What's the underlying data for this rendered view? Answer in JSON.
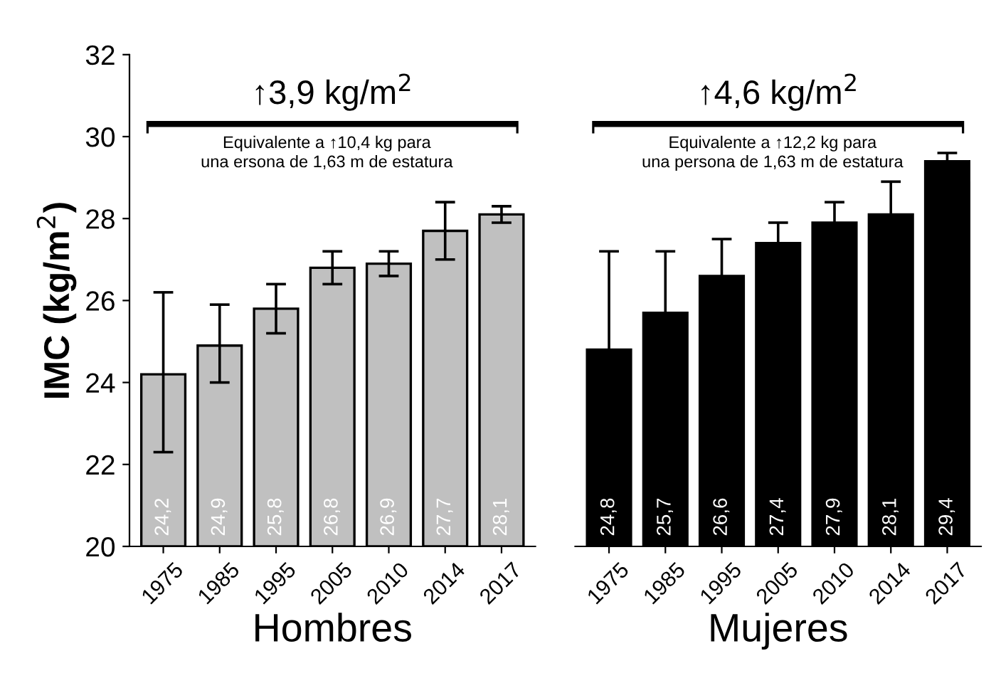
{
  "chart_data": [
    {
      "type": "bar",
      "title": "↑3,9 kg/m$^{2}$",
      "subtitle": "Equivalente a ↑10,4 kg para\nuna ersona de 1,63 m de estatura",
      "xlabel": "Hombres",
      "ylabel": "IMC (kg/m$^{2}$)",
      "categories": [
        "1975",
        "1985",
        "1995",
        "2005",
        "2010",
        "2014",
        "2017"
      ],
      "values": [
        24.2,
        24.9,
        25.8,
        26.8,
        26.9,
        27.7,
        28.1
      ],
      "color": "#c0c0c0",
      "errors": [
        [
          22.3,
          26.2
        ],
        [
          24.0,
          25.9
        ],
        [
          25.2,
          26.4
        ],
        [
          26.4,
          27.2
        ],
        [
          26.6,
          27.2
        ],
        [
          27.0,
          28.4
        ],
        [
          27.9,
          28.3
        ]
      ],
      "value_labels": [
        "24,2",
        "24,9",
        "25,8",
        "26,8",
        "26,9",
        "27,7",
        "28,1"
      ],
      "ylim": [
        20,
        32
      ],
      "yticks": [
        20,
        22,
        24,
        26,
        28,
        30,
        32
      ]
    },
    {
      "type": "bar",
      "title": "↑4,6 kg/m$^{2}$",
      "subtitle": "Equivalente a ↑12,2 kg para\nuna persona de 1,63 m de estatura",
      "xlabel": "Mujeres",
      "categories": [
        "1975",
        "1985",
        "1995",
        "2005",
        "2010",
        "2014",
        "2017"
      ],
      "values": [
        24.8,
        25.7,
        26.6,
        27.4,
        27.9,
        28.1,
        29.4
      ],
      "color": "#000000",
      "errors": [
        2.4,
        1.5,
        0.9,
        0.5,
        0.5,
        0.8,
        0.2
      ],
      "value_labels": [
        "24,8",
        "25,7",
        "26,6",
        "27,4",
        "27,9",
        "28,1",
        "29,4"
      ],
      "ylim": [
        20,
        32
      ],
      "yticks": [
        20,
        22,
        24,
        26,
        28,
        30,
        32
      ],
      "tick_labels": "x"
    }
  ]
}
